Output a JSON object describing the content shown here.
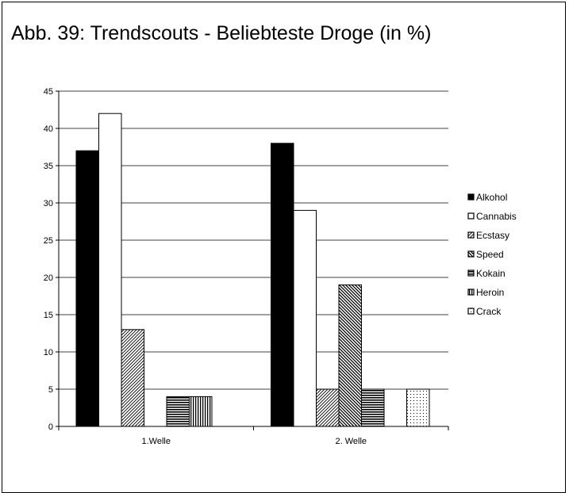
{
  "title": "Abb. 39: Trendscouts - Beliebteste Droge (in %)",
  "chart_data": {
    "type": "bar",
    "categories": [
      "1.Welle",
      "2. Welle"
    ],
    "series": [
      {
        "name": "Alkohol",
        "values": [
          37,
          38
        ]
      },
      {
        "name": "Cannabis",
        "values": [
          42,
          29
        ]
      },
      {
        "name": "Ecstasy",
        "values": [
          13,
          5
        ]
      },
      {
        "name": "Speed",
        "values": [
          0,
          19
        ]
      },
      {
        "name": "Kokain",
        "values": [
          4,
          5
        ]
      },
      {
        "name": "Heroin",
        "values": [
          4,
          0
        ]
      },
      {
        "name": "Crack",
        "values": [
          0,
          5
        ]
      }
    ],
    "yticks": [
      "0",
      "5",
      "10",
      "15",
      "20",
      "25",
      "30",
      "35",
      "40",
      "45"
    ],
    "ylim": [
      0,
      45
    ],
    "grid": true,
    "legend_position": "right"
  }
}
